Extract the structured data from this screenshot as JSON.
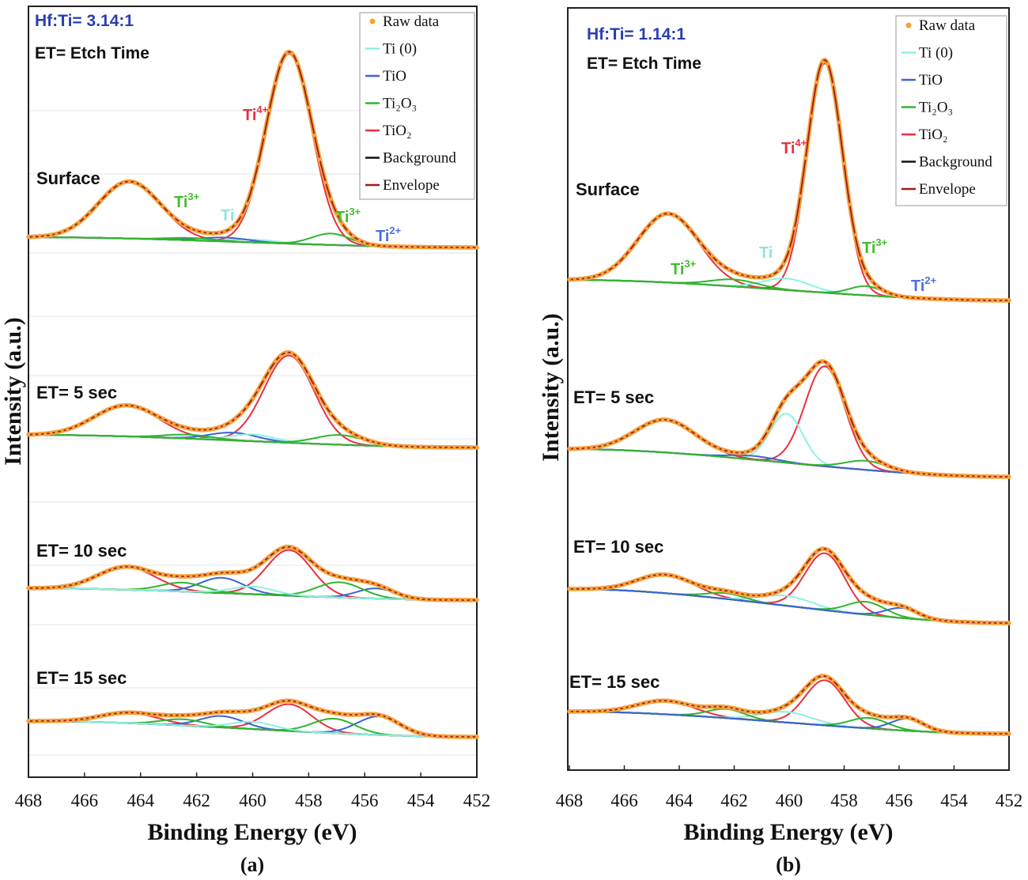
{
  "chart_data": [
    {
      "type": "line",
      "panel_label": "(a)",
      "ratio_label": "Hf:Ti= 3.14:1",
      "etch_note": "ET= Etch Time",
      "xlabel": "Binding Energy (eV)",
      "ylabel": "Intensity (a.u.)",
      "xlim": [
        468,
        452
      ],
      "x_ticks": [
        "468",
        "466",
        "464",
        "462",
        "460",
        "458",
        "456",
        "454",
        "452"
      ],
      "legend": {
        "placement": "top-right",
        "items": [
          {
            "label": "Raw data",
            "color": "#f5a33c",
            "kind": "dot"
          },
          {
            "label": "Ti (0)",
            "color": "#8ff0e6",
            "kind": "line"
          },
          {
            "label": "TiO",
            "color": "#3a63d8",
            "kind": "line"
          },
          {
            "label": "Ti₂O₃",
            "color": "#2fb52f",
            "kind": "line"
          },
          {
            "label": "TiO₂",
            "color": "#e8313f",
            "kind": "line"
          },
          {
            "label": "Background",
            "color": "#111111",
            "kind": "line"
          },
          {
            "label": "Envelope",
            "color": "#9b1c1c",
            "kind": "line"
          }
        ]
      },
      "peak_labels": [
        {
          "text": "Ti",
          "sup": "4+",
          "color": "#e8313f"
        },
        {
          "text": "Ti",
          "sup": "3+",
          "color": "#3fbf2a"
        },
        {
          "text": "Ti",
          "sup": "",
          "color": "#8fe3e0"
        },
        {
          "text": "Ti",
          "sup": "3+",
          "color": "#3fbf2a"
        },
        {
          "text": "Ti",
          "sup": "2+",
          "color": "#4a70e0"
        }
      ],
      "spectra": [
        {
          "name": "Surface",
          "amp": 1.0,
          "bg_hi": 0.0,
          "peaks": [
            {
              "comp": "TiO2",
              "center": 458.7,
              "height": 1.0,
              "width": 0.95
            },
            {
              "comp": "TiO2",
              "center": 464.4,
              "height": 0.3,
              "width": 1.3
            },
            {
              "comp": "Ti0",
              "center": 460.0,
              "height": 0.015,
              "width": 1.0
            },
            {
              "comp": "TiO",
              "center": 461.0,
              "height": 0.02,
              "width": 1.0
            },
            {
              "comp": "Ti2O3",
              "center": 462.2,
              "height": 0.012,
              "width": 1.0
            },
            {
              "comp": "Ti2O3",
              "center": 457.2,
              "height": 0.06,
              "width": 0.8
            }
          ]
        },
        {
          "name": "ET= 5 sec",
          "amp": 1.0,
          "bg_hi": 0.02,
          "peaks": [
            {
              "comp": "TiO2",
              "center": 458.7,
              "height": 0.45,
              "width": 1.05
            },
            {
              "comp": "TiO2",
              "center": 464.5,
              "height": 0.16,
              "width": 1.35
            },
            {
              "comp": "TiO",
              "center": 460.7,
              "height": 0.04,
              "width": 1.0
            },
            {
              "comp": "Ti0",
              "center": 460.0,
              "height": 0.035,
              "width": 0.9
            },
            {
              "comp": "Ti2O3",
              "center": 462.3,
              "height": 0.02,
              "width": 1.0
            },
            {
              "comp": "Ti2O3",
              "center": 456.9,
              "height": 0.05,
              "width": 1.0
            }
          ]
        },
        {
          "name": "ET= 10 sec",
          "amp": 1.0,
          "bg_hi": 0.02,
          "peaks": [
            {
              "comp": "TiO2",
              "center": 458.7,
              "height": 0.18,
              "width": 0.95
            },
            {
              "comp": "TiO2",
              "center": 464.5,
              "height": 0.09,
              "width": 1.2
            },
            {
              "comp": "TiO",
              "center": 461.1,
              "height": 0.06,
              "width": 0.9
            },
            {
              "comp": "TiO",
              "center": 455.6,
              "height": 0.04,
              "width": 0.8
            },
            {
              "comp": "Ti2O3",
              "center": 462.5,
              "height": 0.035,
              "width": 0.9
            },
            {
              "comp": "Ti2O3",
              "center": 456.9,
              "height": 0.06,
              "width": 0.95
            },
            {
              "comp": "Ti0",
              "center": 460.0,
              "height": 0.03,
              "width": 0.9
            }
          ]
        },
        {
          "name": "ET= 15 sec",
          "amp": 1.0,
          "bg_hi": 0.02,
          "peaks": [
            {
              "comp": "TiO2",
              "center": 458.7,
              "height": 0.13,
              "width": 0.95
            },
            {
              "comp": "TiO2",
              "center": 464.4,
              "height": 0.05,
              "width": 1.2
            },
            {
              "comp": "TiO",
              "center": 461.1,
              "height": 0.055,
              "width": 0.9
            },
            {
              "comp": "TiO",
              "center": 455.5,
              "height": 0.09,
              "width": 0.9
            },
            {
              "comp": "Ti2O3",
              "center": 462.5,
              "height": 0.03,
              "width": 0.9
            },
            {
              "comp": "Ti2O3",
              "center": 457.1,
              "height": 0.07,
              "width": 0.9
            },
            {
              "comp": "Ti0",
              "center": 460.0,
              "height": 0.035,
              "width": 0.9
            }
          ]
        }
      ]
    },
    {
      "type": "line",
      "panel_label": "(b)",
      "ratio_label": "Hf:Ti= 1.14:1",
      "etch_note": "ET= Etch Time",
      "xlabel": "Binding Energy (eV)",
      "ylabel": "Intensity (a.u.)",
      "xlim": [
        468,
        452
      ],
      "x_ticks": [
        "468",
        "466",
        "464",
        "462",
        "460",
        "458",
        "456",
        "454",
        "452"
      ],
      "legend": {
        "placement": "top-right",
        "items": [
          {
            "label": "Raw data",
            "color": "#f5a33c",
            "kind": "dot"
          },
          {
            "label": "Ti (0)",
            "color": "#8ff0e6",
            "kind": "line"
          },
          {
            "label": "TiO",
            "color": "#3a63d8",
            "kind": "line"
          },
          {
            "label": "Ti₂O₃",
            "color": "#2fb52f",
            "kind": "line"
          },
          {
            "label": "TiO₂",
            "color": "#e8313f",
            "kind": "line"
          },
          {
            "label": "Background",
            "color": "#111111",
            "kind": "line"
          },
          {
            "label": "Envelope",
            "color": "#9b1c1c",
            "kind": "line"
          }
        ]
      },
      "peak_labels": [
        {
          "text": "Ti",
          "sup": "4+",
          "color": "#e8313f"
        },
        {
          "text": "Ti",
          "sup": "3+",
          "color": "#3fbf2a"
        },
        {
          "text": "Ti",
          "sup": "",
          "color": "#8fe3e0"
        },
        {
          "text": "Ti",
          "sup": "3+",
          "color": "#3fbf2a"
        },
        {
          "text": "Ti",
          "sup": "2+",
          "color": "#4a70e0"
        }
      ],
      "spectra": [
        {
          "name": "Surface",
          "amp": 1.0,
          "bg_hi": 0.03,
          "peaks": [
            {
              "comp": "TiO2",
              "center": 458.7,
              "height": 1.0,
              "width": 0.75
            },
            {
              "comp": "TiO2",
              "center": 464.4,
              "height": 0.3,
              "width": 1.3
            },
            {
              "comp": "Ti0",
              "center": 460.1,
              "height": 0.05,
              "width": 1.0
            },
            {
              "comp": "Ti2O3",
              "center": 462.0,
              "height": 0.03,
              "width": 1.0
            },
            {
              "comp": "Ti2O3",
              "center": 457.2,
              "height": 0.04,
              "width": 0.7
            }
          ]
        },
        {
          "name": "ET= 5 sec",
          "amp": 1.0,
          "bg_hi": 0.1,
          "peaks": [
            {
              "comp": "TiO2",
              "center": 458.7,
              "height": 0.55,
              "width": 0.85
            },
            {
              "comp": "Ti0",
              "center": 460.1,
              "height": 0.27,
              "width": 0.7
            },
            {
              "comp": "TiO2",
              "center": 464.5,
              "height": 0.18,
              "width": 1.3
            },
            {
              "comp": "TiO",
              "center": 461.3,
              "height": 0.02,
              "width": 1.0
            },
            {
              "comp": "Ti2O3",
              "center": 457.2,
              "height": 0.05,
              "width": 0.9
            }
          ]
        },
        {
          "name": "ET= 10 sec",
          "amp": 1.0,
          "bg_hi": 0.1,
          "peaks": [
            {
              "comp": "TiO2",
              "center": 458.7,
              "height": 0.4,
              "width": 0.85
            },
            {
              "comp": "TiO2",
              "center": 464.5,
              "height": 0.13,
              "width": 1.2
            },
            {
              "comp": "Ti0",
              "center": 460.1,
              "height": 0.07,
              "width": 1.1
            },
            {
              "comp": "Ti2O3",
              "center": 462.3,
              "height": 0.04,
              "width": 0.8
            },
            {
              "comp": "Ti2O3",
              "center": 457.2,
              "height": 0.09,
              "width": 0.8
            },
            {
              "comp": "TiO",
              "center": 455.9,
              "height": 0.07,
              "width": 0.7
            }
          ]
        },
        {
          "name": "ET= 15 sec",
          "amp": 1.0,
          "bg_hi": 0.1,
          "peaks": [
            {
              "comp": "TiO2",
              "center": 458.7,
              "height": 0.3,
              "width": 0.85
            },
            {
              "comp": "TiO2",
              "center": 464.5,
              "height": 0.09,
              "width": 1.2
            },
            {
              "comp": "Ti0",
              "center": 460.1,
              "height": 0.07,
              "width": 1.1
            },
            {
              "comp": "Ti2O3",
              "center": 462.3,
              "height": 0.06,
              "width": 0.8
            },
            {
              "comp": "Ti2O3",
              "center": 457.1,
              "height": 0.07,
              "width": 0.8
            },
            {
              "comp": "TiO",
              "center": 455.7,
              "height": 0.08,
              "width": 0.7
            }
          ]
        }
      ]
    }
  ]
}
